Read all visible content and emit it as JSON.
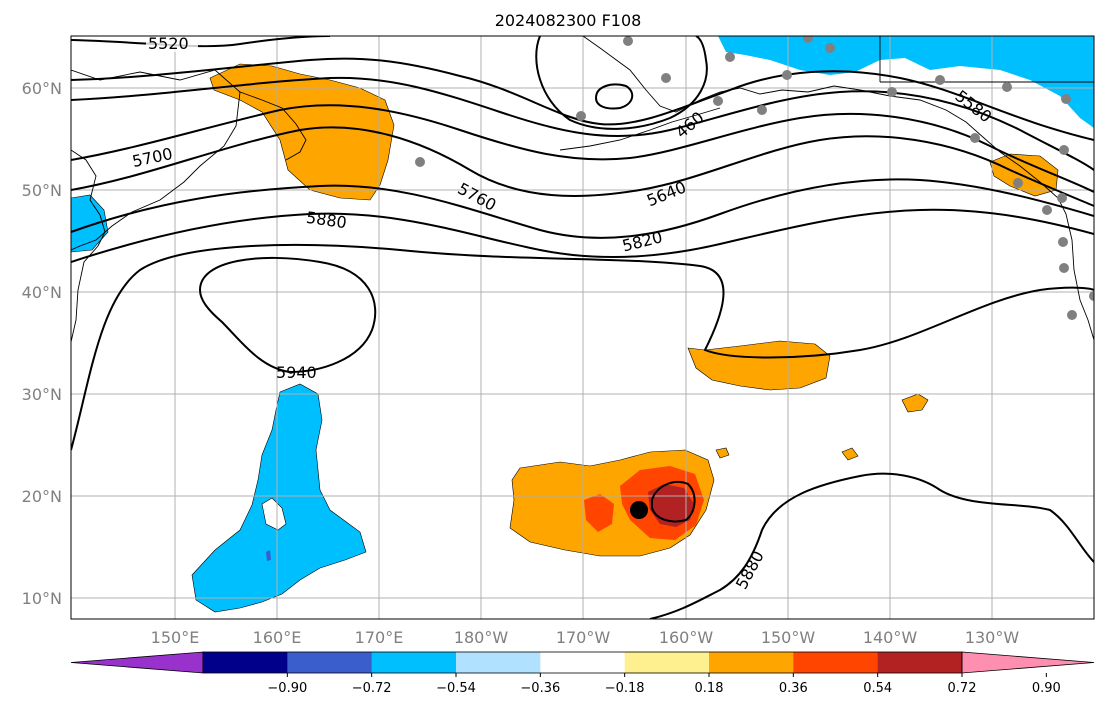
{
  "title": "2024082300 F108",
  "chart_data": {
    "type": "heatmap",
    "title": "2024082300 F108",
    "lon_ticks": [
      "150°E",
      "160°E",
      "170°E",
      "180°W",
      "170°W",
      "160°W",
      "150°W",
      "140°W",
      "130°W"
    ],
    "lat_ticks": [
      "60°N",
      "50°N",
      "40°N",
      "30°N",
      "20°N",
      "10°N"
    ],
    "colorbar": {
      "ticks": [
        "−0.90",
        "−0.72",
        "−0.54",
        "−0.36",
        "−0.18",
        "0.18",
        "0.36",
        "0.54",
        "0.72",
        "0.90"
      ],
      "colors": [
        "#9932cc",
        "#00008b",
        "#3a5fcd",
        "#00bfff",
        "#b0e2ff",
        "#ffffff",
        "#fff08f",
        "#ffa500",
        "#ff4500",
        "#b22222",
        "#ff8fb0"
      ]
    },
    "contour_labels": [
      "5520",
      "5700",
      "5880",
      "5760",
      "5640",
      "5820",
      "5940",
      "5880",
      "5580",
      "460"
    ]
  }
}
